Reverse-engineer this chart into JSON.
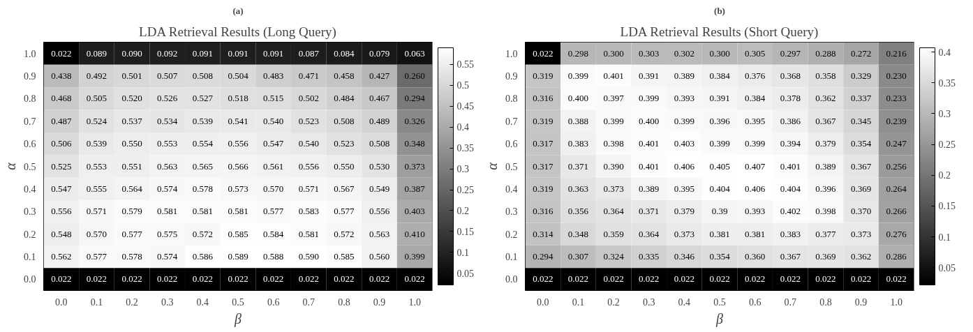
{
  "chart_data": [
    {
      "type": "heatmap",
      "subtitle": "(a)",
      "title": "LDA Retrieval Results (Long Query)",
      "xlabel": "β",
      "ylabel": "α",
      "categories": [
        "0.0",
        "0.1",
        "0.2",
        "0.3",
        "0.4",
        "0.5",
        "0.6",
        "0.7",
        "0.8",
        "0.9",
        "1.0"
      ],
      "y_categories": [
        "1.0",
        "0.9",
        "0.8",
        "0.7",
        "0.6",
        "0.5",
        "0.4",
        "0.3",
        "0.2",
        "0.1",
        "0.0"
      ],
      "cells": [
        [
          0.022,
          0.089,
          0.09,
          0.092,
          0.091,
          0.091,
          0.091,
          0.087,
          0.084,
          0.079,
          0.063
        ],
        [
          0.438,
          0.492,
          0.501,
          0.507,
          0.508,
          0.504,
          0.483,
          0.471,
          0.458,
          0.427,
          0.26
        ],
        [
          0.468,
          0.505,
          0.52,
          0.526,
          0.527,
          0.518,
          0.515,
          0.502,
          0.484,
          0.467,
          0.294
        ],
        [
          0.487,
          0.524,
          0.537,
          0.534,
          0.539,
          0.541,
          0.54,
          0.523,
          0.508,
          0.489,
          0.326
        ],
        [
          0.506,
          0.539,
          0.55,
          0.553,
          0.554,
          0.556,
          0.547,
          0.54,
          0.523,
          0.508,
          0.348
        ],
        [
          0.525,
          0.553,
          0.551,
          0.563,
          0.565,
          0.566,
          0.561,
          0.556,
          0.55,
          0.53,
          0.373
        ],
        [
          0.547,
          0.555,
          0.564,
          0.574,
          0.578,
          0.573,
          0.57,
          0.571,
          0.567,
          0.549,
          0.387
        ],
        [
          0.556,
          0.571,
          0.579,
          0.581,
          0.581,
          0.581,
          0.577,
          0.583,
          0.577,
          0.556,
          0.403
        ],
        [
          0.548,
          0.57,
          0.577,
          0.575,
          0.572,
          0.585,
          0.584,
          0.581,
          0.572,
          0.563,
          0.41
        ],
        [
          0.562,
          0.577,
          0.578,
          0.574,
          0.586,
          0.589,
          0.588,
          0.59,
          0.585,
          0.56,
          0.399
        ],
        [
          0.022,
          0.022,
          0.022,
          0.022,
          0.022,
          0.022,
          0.022,
          0.022,
          0.022,
          0.022,
          0.022
        ]
      ],
      "cell_labels": [
        [
          "0.022",
          "0.089",
          "0.090",
          "0.092",
          "0.091",
          "0.091",
          "0.091",
          "0.087",
          "0.084",
          "0.079",
          "0.063"
        ],
        [
          "0.438",
          "0.492",
          "0.501",
          "0.507",
          "0.508",
          "0.504",
          "0.483",
          "0.471",
          "0.458",
          "0.427",
          "0.260"
        ],
        [
          "0.468",
          "0.505",
          "0.520",
          "0.526",
          "0.527",
          "0.518",
          "0.515",
          "0.502",
          "0.484",
          "0.467",
          "0.294"
        ],
        [
          "0.487",
          "0.524",
          "0.537",
          "0.534",
          "0.539",
          "0.541",
          "0.540",
          "0.523",
          "0.508",
          "0.489",
          "0.326"
        ],
        [
          "0.506",
          "0.539",
          "0.550",
          "0.553",
          "0.554",
          "0.556",
          "0.547",
          "0.540",
          "0.523",
          "0.508",
          "0.348"
        ],
        [
          "0.525",
          "0.553",
          "0.551",
          "0.563",
          "0.565",
          "0.566",
          "0.561",
          "0.556",
          "0.550",
          "0.530",
          "0.373"
        ],
        [
          "0.547",
          "0.555",
          "0.564",
          "0.574",
          "0.578",
          "0.573",
          "0.570",
          "0.571",
          "0.567",
          "0.549",
          "0.387"
        ],
        [
          "0.556",
          "0.571",
          "0.579",
          "0.581",
          "0.581",
          "0.581",
          "0.577",
          "0.583",
          "0.577",
          "0.556",
          "0.403"
        ],
        [
          "0.548",
          "0.570",
          "0.577",
          "0.575",
          "0.572",
          "0.585",
          "0.584",
          "0.581",
          "0.572",
          "0.563",
          "0.410"
        ],
        [
          "0.562",
          "0.577",
          "0.578",
          "0.574",
          "0.586",
          "0.589",
          "0.588",
          "0.590",
          "0.585",
          "0.560",
          "0.399"
        ],
        [
          "0.022",
          "0.022",
          "0.022",
          "0.022",
          "0.022",
          "0.022",
          "0.022",
          "0.022",
          "0.022",
          "0.022",
          "0.022"
        ]
      ],
      "clim": [
        0.022,
        0.59
      ],
      "cticks": [
        0.05,
        0.1,
        0.15,
        0.2,
        0.25,
        0.3,
        0.35,
        0.4,
        0.45,
        0.5,
        0.55
      ]
    },
    {
      "type": "heatmap",
      "subtitle": "(b)",
      "title": "LDA Retrieval Results (Short Query)",
      "xlabel": "β",
      "ylabel": "α",
      "categories": [
        "0.0",
        "0.1",
        "0.2",
        "0.3",
        "0.4",
        "0.5",
        "0.6",
        "0.7",
        "0.8",
        "0.9",
        "1.0"
      ],
      "y_categories": [
        "1.0",
        "0.9",
        "0.8",
        "0.7",
        "0.6",
        "0.5",
        "0.4",
        "0.3",
        "0.2",
        "0.1",
        "0.0"
      ],
      "cells": [
        [
          0.022,
          0.298,
          0.3,
          0.303,
          0.302,
          0.3,
          0.305,
          0.297,
          0.288,
          0.272,
          0.216
        ],
        [
          0.319,
          0.399,
          0.401,
          0.391,
          0.389,
          0.384,
          0.376,
          0.368,
          0.358,
          0.329,
          0.23
        ],
        [
          0.316,
          0.4,
          0.397,
          0.399,
          0.393,
          0.391,
          0.384,
          0.378,
          0.362,
          0.337,
          0.233
        ],
        [
          0.319,
          0.388,
          0.399,
          0.4,
          0.399,
          0.396,
          0.395,
          0.386,
          0.367,
          0.345,
          0.239
        ],
        [
          0.317,
          0.383,
          0.398,
          0.401,
          0.403,
          0.399,
          0.399,
          0.394,
          0.379,
          0.354,
          0.247
        ],
        [
          0.317,
          0.371,
          0.39,
          0.401,
          0.406,
          0.405,
          0.407,
          0.401,
          0.389,
          0.367,
          0.256
        ],
        [
          0.319,
          0.363,
          0.373,
          0.389,
          0.395,
          0.404,
          0.406,
          0.404,
          0.396,
          0.369,
          0.264
        ],
        [
          0.316,
          0.356,
          0.364,
          0.371,
          0.379,
          0.39,
          0.393,
          0.402,
          0.398,
          0.37,
          0.266
        ],
        [
          0.314,
          0.348,
          0.359,
          0.364,
          0.373,
          0.381,
          0.381,
          0.383,
          0.377,
          0.373,
          0.276
        ],
        [
          0.294,
          0.307,
          0.324,
          0.335,
          0.346,
          0.354,
          0.36,
          0.367,
          0.369,
          0.362,
          0.286
        ],
        [
          0.022,
          0.022,
          0.022,
          0.022,
          0.022,
          0.022,
          0.022,
          0.022,
          0.022,
          0.022,
          0.022
        ]
      ],
      "cell_labels": [
        [
          "0.022",
          "0.298",
          "0.300",
          "0.303",
          "0.302",
          "0.300",
          "0.305",
          "0.297",
          "0.288",
          "0.272",
          "0.216"
        ],
        [
          "0.319",
          "0.399",
          "0.401",
          "0.391",
          "0.389",
          "0.384",
          "0.376",
          "0.368",
          "0.358",
          "0.329",
          "0.230"
        ],
        [
          "0.316",
          "0.400",
          "0.397",
          "0.399",
          "0.393",
          "0.391",
          "0.384",
          "0.378",
          "0.362",
          "0.337",
          "0.233"
        ],
        [
          "0.319",
          "0.388",
          "0.399",
          "0.400",
          "0.399",
          "0.396",
          "0.395",
          "0.386",
          "0.367",
          "0.345",
          "0.239"
        ],
        [
          "0.317",
          "0.383",
          "0.398",
          "0.401",
          "0.403",
          "0.399",
          "0.399",
          "0.394",
          "0.379",
          "0.354",
          "0.247"
        ],
        [
          "0.317",
          "0.371",
          "0.390",
          "0.401",
          "0.406",
          "0.405",
          "0.407",
          "0.401",
          "0.389",
          "0.367",
          "0.256"
        ],
        [
          "0.319",
          "0.363",
          "0.373",
          "0.389",
          "0.395",
          "0.404",
          "0.406",
          "0.404",
          "0.396",
          "0.369",
          "0.264"
        ],
        [
          "0.316",
          "0.356",
          "0.364",
          "0.371",
          "0.379",
          "0.39",
          "0.393",
          "0.402",
          "0.398",
          "0.370",
          "0.266"
        ],
        [
          "0.314",
          "0.348",
          "0.359",
          "0.364",
          "0.373",
          "0.381",
          "0.381",
          "0.383",
          "0.377",
          "0.373",
          "0.276"
        ],
        [
          "0.294",
          "0.307",
          "0.324",
          "0.335",
          "0.346",
          "0.354",
          "0.360",
          "0.367",
          "0.369",
          "0.362",
          "0.286"
        ],
        [
          "0.022",
          "0.022",
          "0.022",
          "0.022",
          "0.022",
          "0.022",
          "0.022",
          "0.022",
          "0.022",
          "0.022",
          "0.022"
        ]
      ],
      "clim": [
        0.022,
        0.407
      ],
      "cticks": [
        0.05,
        0.1,
        0.15,
        0.2,
        0.25,
        0.3,
        0.35,
        0.4
      ]
    }
  ]
}
